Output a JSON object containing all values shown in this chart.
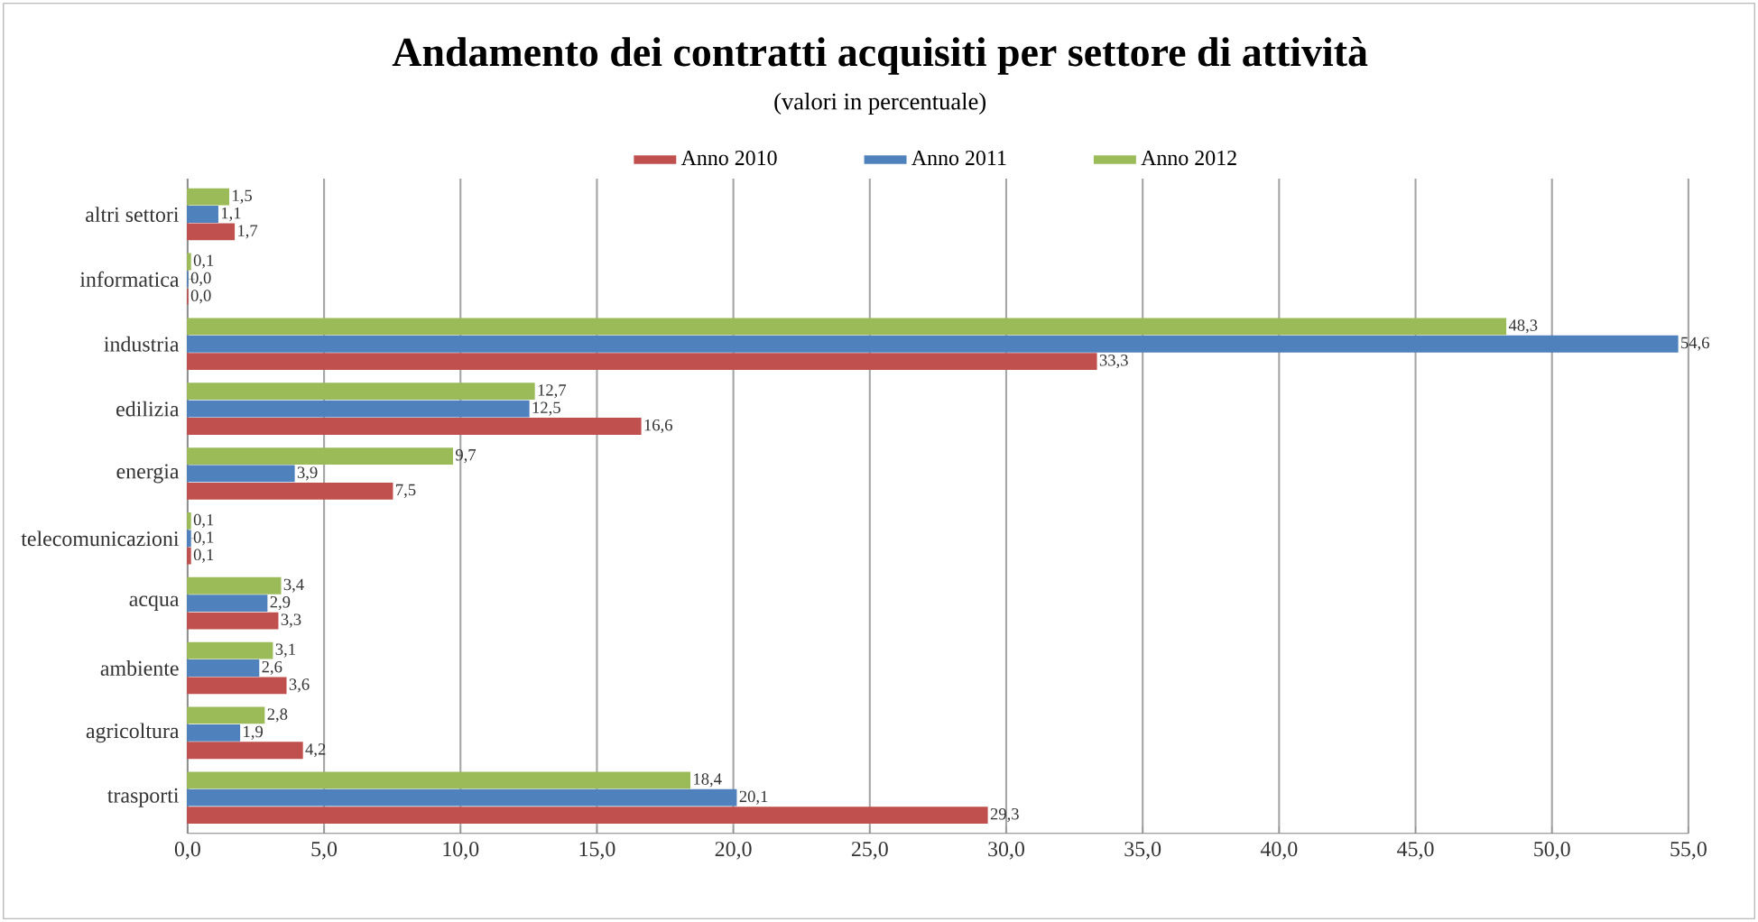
{
  "chart_data": {
    "type": "bar",
    "orientation": "horizontal",
    "title": "Andamento dei contratti acquisiti per settore di attività",
    "subtitle": "(valori in percentuale)",
    "categories": [
      "altri settori",
      "informatica",
      "industria",
      "edilizia",
      "energia",
      "telecomunicazioni",
      "acqua",
      "ambiente",
      "agricoltura",
      "trasporti"
    ],
    "series": [
      {
        "name": "Anno 2010",
        "color": "#c0504d",
        "values": [
          1.7,
          0.0,
          33.3,
          16.6,
          7.5,
          0.1,
          3.3,
          3.6,
          4.2,
          29.3
        ],
        "value_labels": [
          "1,7",
          "0,0",
          "33,3",
          "16,6",
          "7,5",
          "0,1",
          "3,3",
          "3,6",
          "4,2",
          "29,3"
        ]
      },
      {
        "name": "Anno 2011",
        "color": "#4f81bd",
        "values": [
          1.1,
          0.0,
          54.6,
          12.5,
          3.9,
          0.1,
          2.9,
          2.6,
          1.9,
          20.1
        ],
        "value_labels": [
          "1,1",
          "0,0",
          "54,6",
          "12,5",
          "3,9",
          "0,1",
          "2,9",
          "2,6",
          "1,9",
          "20,1"
        ]
      },
      {
        "name": "Anno 2012",
        "color": "#9bbb59",
        "values": [
          1.5,
          0.1,
          48.3,
          12.7,
          9.7,
          0.1,
          3.4,
          3.1,
          2.8,
          18.4
        ],
        "value_labels": [
          "1,5",
          "0,1",
          "48,3",
          "12,7",
          "9,7",
          "0,1",
          "3,4",
          "3,1",
          "2,8",
          "18,4"
        ]
      }
    ],
    "xlim": [
      0,
      55
    ],
    "xticks": [
      {
        "value": 0,
        "label": "0,0"
      },
      {
        "value": 5,
        "label": "5,0"
      },
      {
        "value": 10,
        "label": "10,0"
      },
      {
        "value": 15,
        "label": "15,0"
      },
      {
        "value": 20,
        "label": "20,0"
      },
      {
        "value": 25,
        "label": "25,0"
      },
      {
        "value": 30,
        "label": "30,0"
      },
      {
        "value": 35,
        "label": "35,0"
      },
      {
        "value": 40,
        "label": "40,0"
      },
      {
        "value": 45,
        "label": "45,0"
      },
      {
        "value": 50,
        "label": "50,0"
      },
      {
        "value": 55,
        "label": "55,0"
      }
    ],
    "grid": "x",
    "legend": "top"
  }
}
